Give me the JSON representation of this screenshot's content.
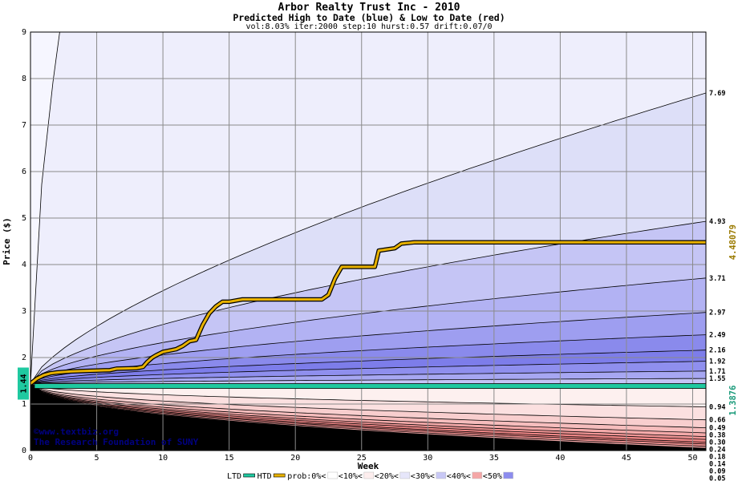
{
  "chart_data": {
    "type": "area",
    "title": "Arbor Realty Trust Inc - 2010",
    "subtitle": "Predicted High to Date (blue) &  Low to Date (red)",
    "parameters": "vol:8.03% iter:2000 step:10 hurst:0.57 drift:0.07/0",
    "xlabel": "Week",
    "ylabel": "Price ($)",
    "xlim": [
      0,
      51
    ],
    "ylim": [
      0,
      9
    ],
    "x_ticks": [
      "0",
      "5",
      "10",
      "15",
      "20",
      "25",
      "30",
      "35",
      "40",
      "45",
      "50"
    ],
    "y_ticks": [
      "0",
      "1",
      "2",
      "3",
      "4",
      "5",
      "6",
      "7",
      "8",
      "9"
    ],
    "grid": true,
    "start_price": "1.44",
    "start_value": 1.44,
    "htd_value": 4.48079,
    "htd_label": "4.48079",
    "ltd_value": 1.3876,
    "ltd_label": "1.3876",
    "htd_series": {
      "name": "HTD",
      "points": [
        [
          0,
          1.44
        ],
        [
          0.5,
          1.55
        ],
        [
          1,
          1.62
        ],
        [
          1.5,
          1.66
        ],
        [
          2,
          1.68
        ],
        [
          3,
          1.7
        ],
        [
          4,
          1.71
        ],
        [
          5,
          1.72
        ],
        [
          6,
          1.73
        ],
        [
          6.5,
          1.76
        ],
        [
          8,
          1.77
        ],
        [
          8.5,
          1.8
        ],
        [
          8.8,
          1.9
        ],
        [
          9.2,
          2.0
        ],
        [
          9.5,
          2.05
        ],
        [
          10,
          2.12
        ],
        [
          10.5,
          2.15
        ],
        [
          11,
          2.18
        ],
        [
          11.5,
          2.25
        ],
        [
          12,
          2.35
        ],
        [
          12.5,
          2.38
        ],
        [
          13,
          2.7
        ],
        [
          13.5,
          2.95
        ],
        [
          14,
          3.1
        ],
        [
          14.5,
          3.2
        ],
        [
          15,
          3.2
        ],
        [
          16,
          3.25
        ],
        [
          17,
          3.25
        ],
        [
          18,
          3.25
        ],
        [
          19,
          3.25
        ],
        [
          20,
          3.25
        ],
        [
          21,
          3.25
        ],
        [
          22,
          3.25
        ],
        [
          22.5,
          3.35
        ],
        [
          23,
          3.7
        ],
        [
          23.5,
          3.95
        ],
        [
          25,
          3.95
        ],
        [
          26,
          3.95
        ],
        [
          26.3,
          4.3
        ],
        [
          27,
          4.33
        ],
        [
          27.5,
          4.35
        ],
        [
          28,
          4.45
        ],
        [
          29,
          4.48
        ],
        [
          51,
          4.48
        ]
      ]
    },
    "ltd_series": {
      "name": "LTD",
      "value": 1.3876
    },
    "high_band_labels": [
      "7.69",
      "4.93",
      "3.71",
      "2.97",
      "2.49",
      "2.16",
      "1.92",
      "1.71",
      "1.55"
    ],
    "high_band_values": [
      7.69,
      4.93,
      3.71,
      2.97,
      2.49,
      2.16,
      1.92,
      1.71,
      1.55
    ],
    "high_band_shape_powers": [
      0.7,
      0.62,
      0.58,
      0.56,
      0.55,
      0.55,
      0.55,
      0.55,
      0.55
    ],
    "high_band_fills": [
      "#eeeefc",
      "#dddff8",
      "#c5c5f5",
      "#b2b2f3",
      "#9e9ef0",
      "#8a8aec",
      "#7d7dea",
      "#8f8fee",
      "#a7a7f2",
      "#c4c4f6"
    ],
    "low_band_labels": [
      "0.94",
      "0.66",
      "0.49",
      "0.38",
      "0.30",
      "0.24",
      "0.18",
      "0.14",
      "0.09",
      "0.05"
    ],
    "low_band_values": [
      0.94,
      0.66,
      0.49,
      0.38,
      0.3,
      0.24,
      0.18,
      0.14,
      0.09,
      0.05
    ],
    "low_band_fills": [
      "#fdf0ef",
      "#fbe0e0",
      "#f8cece",
      "#f6bdbd",
      "#f3a9a9",
      "#f09595",
      "#ee8686",
      "#ec8080",
      "#ef9090",
      "#f3a8a8"
    ],
    "legend": {
      "placement": "bottom",
      "items": [
        {
          "label": "LTD",
          "color": "#1fc9a0",
          "kind": "line"
        },
        {
          "label": "HTD",
          "color": "#e8b200",
          "kind": "line"
        },
        {
          "label": "prob:0%<",
          "color": "#ffffff",
          "kind": "swatch"
        },
        {
          "label": "<10%<",
          "color": "#fdeeee",
          "kind": "swatch"
        },
        {
          "label": "<20%<",
          "color": "#e6e6fa",
          "kind": "swatch"
        },
        {
          "label": "<30%<",
          "color": "#c8c8f5",
          "kind": "swatch"
        },
        {
          "label": "<40%<",
          "color": "#f4a6a6",
          "kind": "swatch"
        },
        {
          "label": "<50%",
          "color": "#8c8cee",
          "kind": "swatch"
        }
      ]
    },
    "watermark": {
      "line1": "©www.textbiz.org",
      "line2": "The Research Foundation of SUNY"
    },
    "colors": {
      "background": "#f6f6ff",
      "grid": "#8a8a8a",
      "htd": "#e8b200",
      "ltd": "#1fc9a0",
      "htd_label": "#9a7a00",
      "ltd_label": "#1a9a7a",
      "text": "#000000",
      "watermark": "#000080"
    }
  }
}
